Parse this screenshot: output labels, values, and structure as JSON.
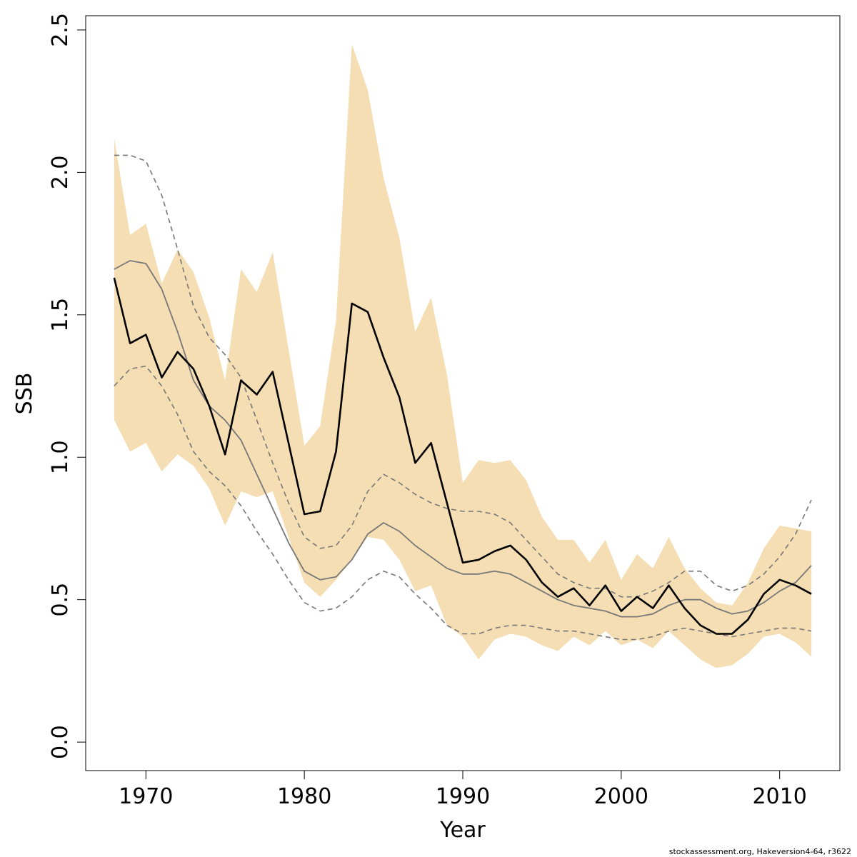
{
  "chart_data": {
    "type": "line",
    "xlabel": "Year",
    "ylabel": "SSB",
    "xlim": [
      1966.2,
      2013.8
    ],
    "ylim": [
      -0.1,
      2.55
    ],
    "xticks": [
      1970,
      1980,
      1990,
      2000,
      2010
    ],
    "yticks": [
      0.0,
      0.5,
      1.0,
      1.5,
      2.0,
      2.5
    ],
    "ytick_labels": [
      "0.0",
      "0.5",
      "1.0",
      "1.5",
      "2.0",
      "2.5"
    ],
    "grid": false,
    "credit": "stockassessment.org, Hakeversion4-64, r3622",
    "colors": {
      "band": "#f5deb3",
      "estimate": "#000000",
      "reference": "#777777",
      "reference_bounds": "#777777"
    },
    "x": [
      1968,
      1969,
      1970,
      1971,
      1972,
      1973,
      1974,
      1975,
      1976,
      1977,
      1978,
      1979,
      1980,
      1981,
      1982,
      1983,
      1984,
      1985,
      1986,
      1987,
      1988,
      1989,
      1990,
      1991,
      1992,
      1993,
      1994,
      1995,
      1996,
      1997,
      1998,
      1999,
      2000,
      2001,
      2002,
      2003,
      2004,
      2005,
      2006,
      2007,
      2008,
      2009,
      2010,
      2011,
      2012
    ],
    "series": [
      {
        "name": "SSB estimate",
        "role": "estimate",
        "values": [
          1.63,
          1.4,
          1.43,
          1.28,
          1.37,
          1.31,
          1.18,
          1.01,
          1.27,
          1.22,
          1.3,
          1.05,
          0.8,
          0.81,
          1.02,
          1.54,
          1.51,
          1.35,
          1.21,
          0.98,
          1.05,
          0.84,
          0.63,
          0.64,
          0.67,
          0.69,
          0.64,
          0.56,
          0.51,
          0.54,
          0.48,
          0.55,
          0.46,
          0.51,
          0.47,
          0.55,
          0.47,
          0.41,
          0.38,
          0.38,
          0.43,
          0.52,
          0.57,
          0.55,
          0.52
        ]
      },
      {
        "name": "Confidence interval lower",
        "role": "band_lower",
        "values": [
          1.13,
          1.02,
          1.05,
          0.95,
          1.01,
          0.97,
          0.89,
          0.76,
          0.88,
          0.86,
          0.88,
          0.72,
          0.56,
          0.51,
          0.57,
          0.64,
          0.72,
          0.71,
          0.64,
          0.53,
          0.55,
          0.41,
          0.37,
          0.29,
          0.36,
          0.38,
          0.37,
          0.34,
          0.32,
          0.37,
          0.34,
          0.39,
          0.34,
          0.36,
          0.33,
          0.39,
          0.34,
          0.29,
          0.26,
          0.27,
          0.31,
          0.37,
          0.38,
          0.35,
          0.3
        ]
      },
      {
        "name": "Confidence interval upper",
        "role": "band_upper",
        "values": [
          2.12,
          1.78,
          1.82,
          1.61,
          1.73,
          1.65,
          1.49,
          1.27,
          1.66,
          1.58,
          1.72,
          1.38,
          1.04,
          1.11,
          1.48,
          2.45,
          2.29,
          1.98,
          1.77,
          1.44,
          1.56,
          1.29,
          0.91,
          0.99,
          0.98,
          0.99,
          0.92,
          0.79,
          0.71,
          0.71,
          0.63,
          0.71,
          0.57,
          0.66,
          0.61,
          0.72,
          0.61,
          0.54,
          0.49,
          0.48,
          0.56,
          0.68,
          0.76,
          0.75,
          0.74
        ]
      },
      {
        "name": "Reference SSB",
        "role": "reference",
        "values": [
          1.66,
          1.69,
          1.68,
          1.59,
          1.44,
          1.27,
          1.18,
          1.13,
          1.06,
          0.94,
          0.82,
          0.7,
          0.6,
          0.57,
          0.58,
          0.64,
          0.73,
          0.77,
          0.74,
          0.69,
          0.65,
          0.61,
          0.59,
          0.59,
          0.6,
          0.59,
          0.56,
          0.53,
          0.5,
          0.48,
          0.47,
          0.46,
          0.44,
          0.44,
          0.45,
          0.48,
          0.5,
          0.5,
          0.47,
          0.45,
          0.46,
          0.49,
          0.53,
          0.56,
          0.62
        ]
      },
      {
        "name": "Reference upper bound",
        "role": "reference_upper",
        "values": [
          2.06,
          2.06,
          2.04,
          1.92,
          1.73,
          1.53,
          1.42,
          1.36,
          1.28,
          1.13,
          0.98,
          0.84,
          0.72,
          0.68,
          0.69,
          0.76,
          0.88,
          0.94,
          0.91,
          0.87,
          0.84,
          0.82,
          0.81,
          0.81,
          0.8,
          0.77,
          0.71,
          0.65,
          0.59,
          0.56,
          0.54,
          0.54,
          0.51,
          0.51,
          0.53,
          0.56,
          0.6,
          0.6,
          0.55,
          0.53,
          0.55,
          0.59,
          0.65,
          0.73,
          0.85
        ]
      },
      {
        "name": "Reference lower bound",
        "role": "reference_lower",
        "values": [
          1.25,
          1.31,
          1.32,
          1.25,
          1.15,
          1.02,
          0.95,
          0.9,
          0.83,
          0.74,
          0.66,
          0.57,
          0.49,
          0.46,
          0.47,
          0.51,
          0.57,
          0.6,
          0.58,
          0.52,
          0.47,
          0.41,
          0.38,
          0.38,
          0.4,
          0.41,
          0.41,
          0.4,
          0.39,
          0.39,
          0.38,
          0.37,
          0.36,
          0.36,
          0.37,
          0.39,
          0.4,
          0.39,
          0.38,
          0.37,
          0.38,
          0.39,
          0.4,
          0.4,
          0.39
        ]
      }
    ]
  }
}
